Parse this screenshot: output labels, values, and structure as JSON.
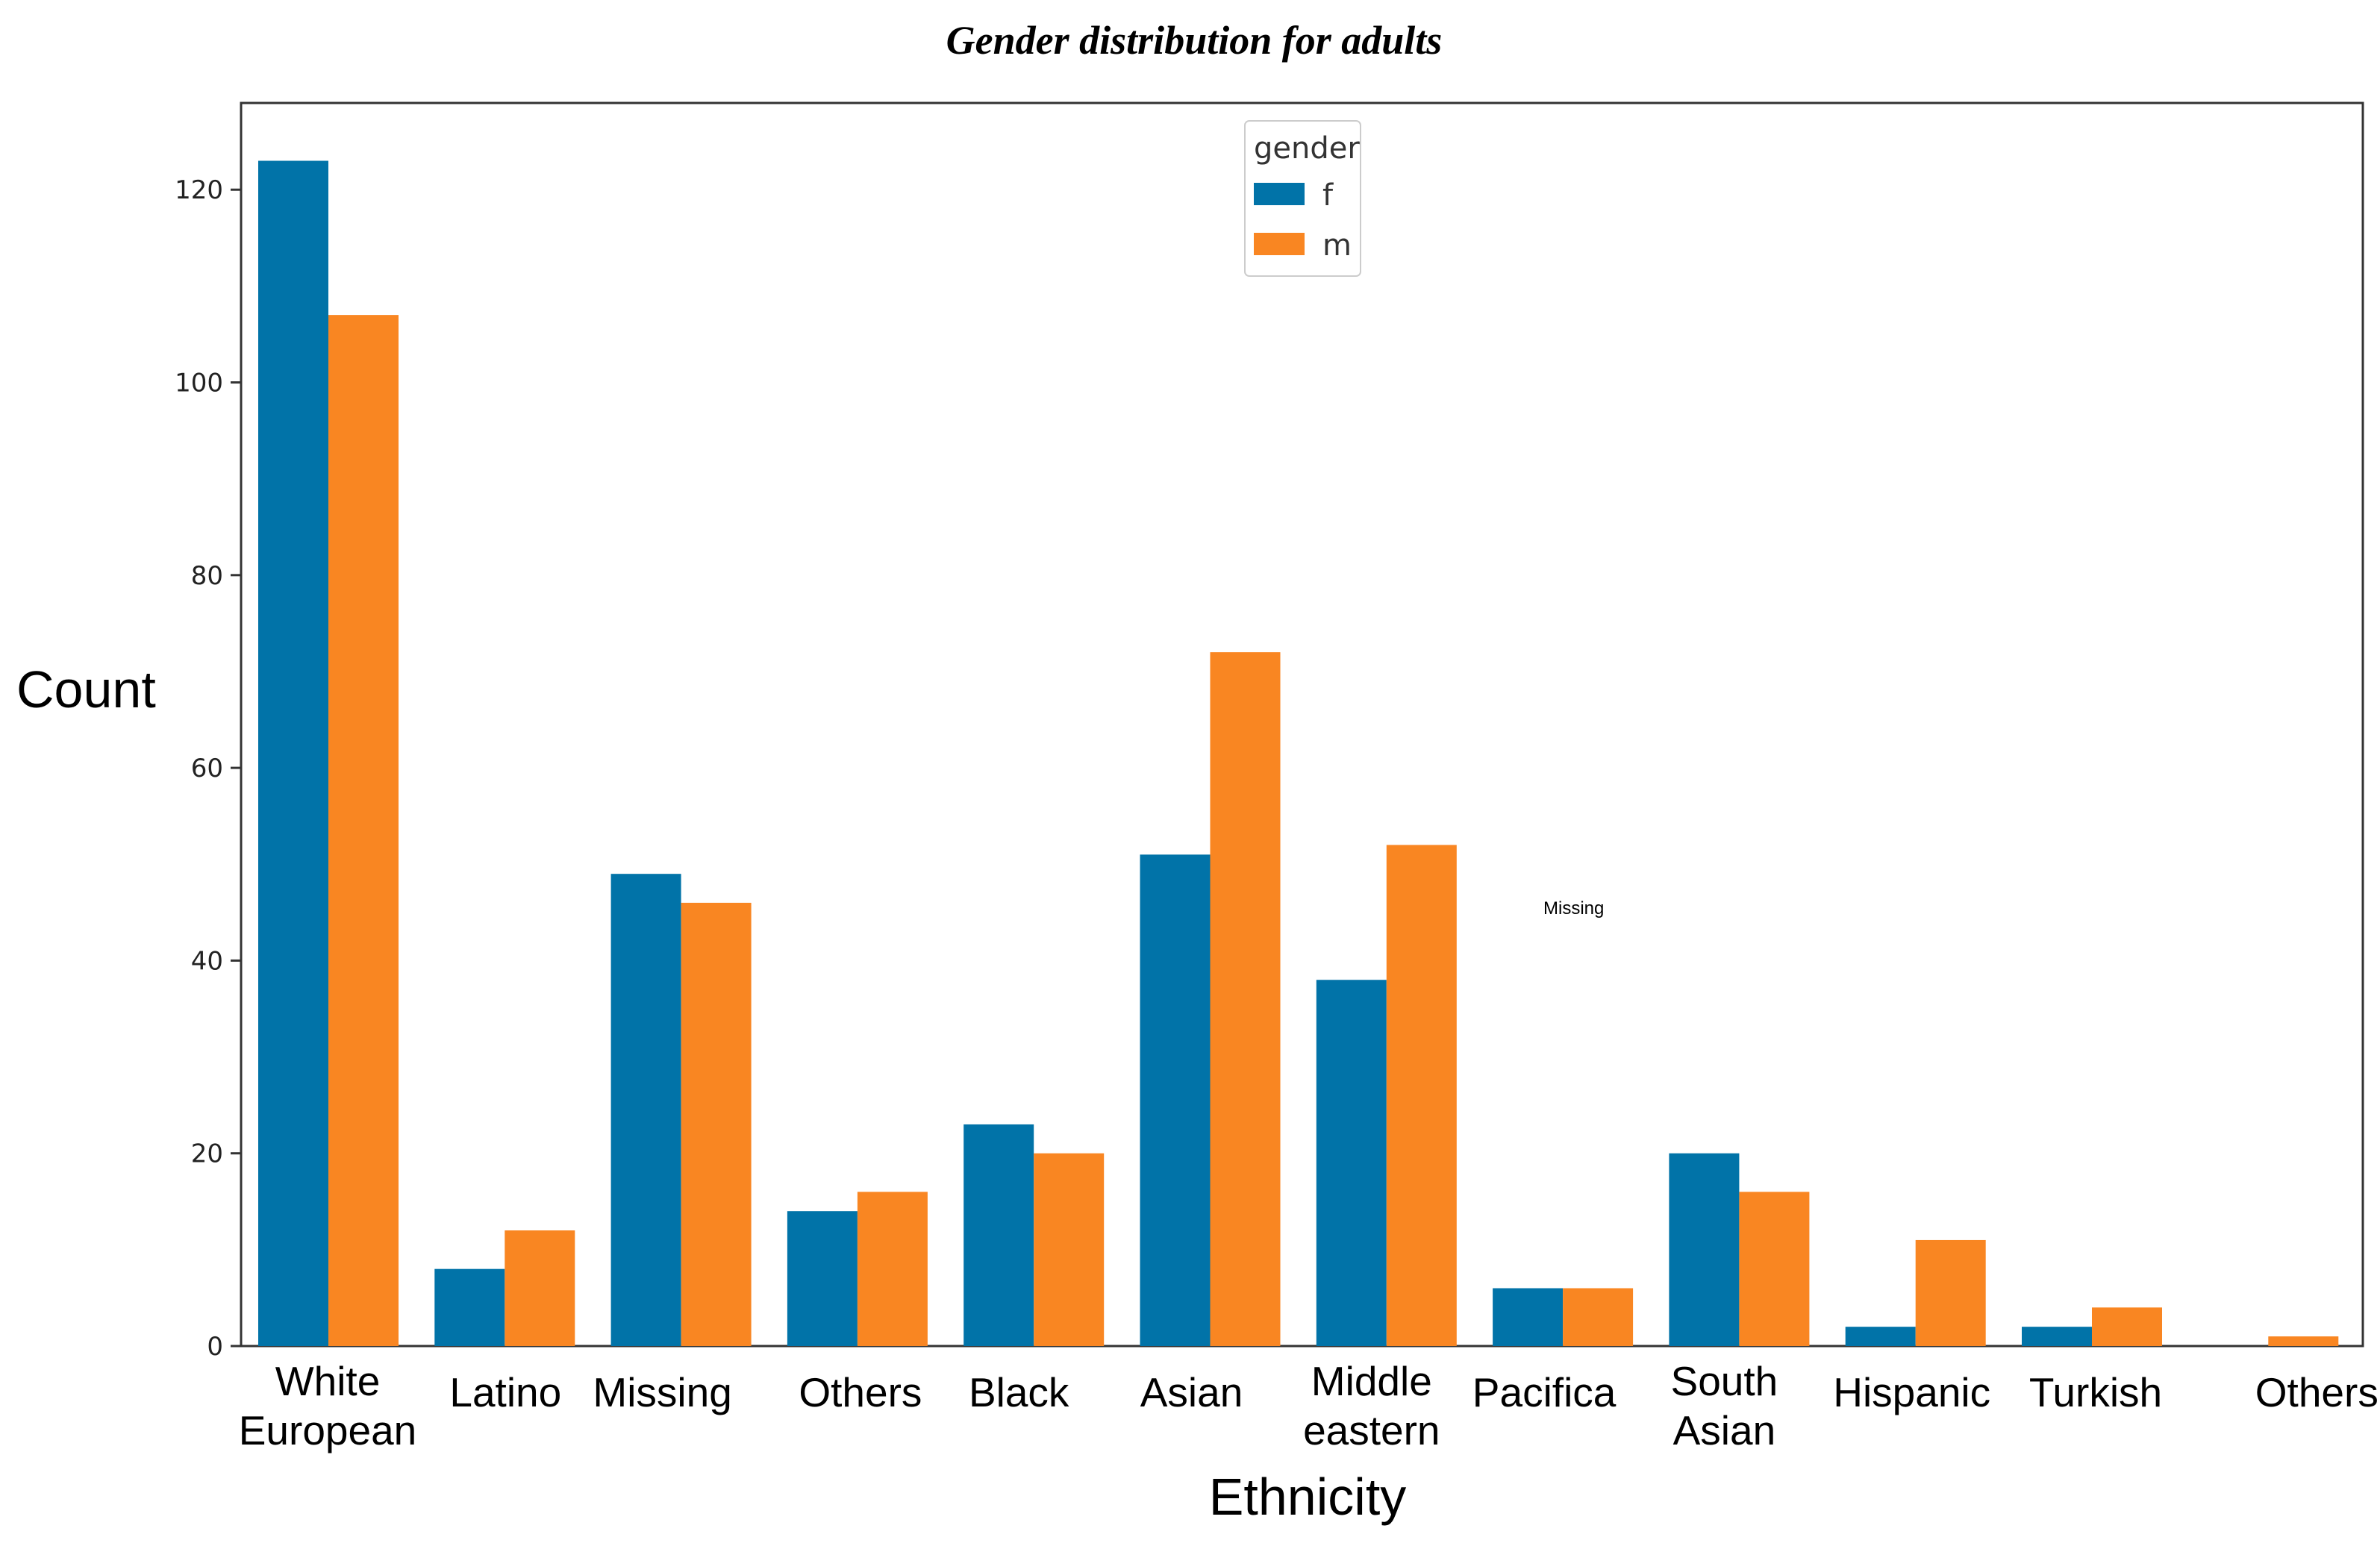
{
  "chart_data": {
    "type": "bar",
    "title": "Gender distribution for adults",
    "xlabel": "Ethnicity",
    "ylabel": "Count",
    "ylim": [
      0,
      129
    ],
    "yticks": [
      0,
      20,
      40,
      60,
      80,
      100,
      120
    ],
    "categories": [
      [
        "White",
        "European"
      ],
      [
        "Latino"
      ],
      [
        "Missing"
      ],
      [
        "Others"
      ],
      [
        "Black"
      ],
      [
        "Asian"
      ],
      [
        "Middle",
        "eastern"
      ],
      [
        "Pacifica"
      ],
      [
        "South",
        "Asian"
      ],
      [
        "Hispanic"
      ],
      [
        "Turkish"
      ],
      [
        "Others"
      ]
    ],
    "series": [
      {
        "name": "f",
        "color": "#0173a8",
        "values": [
          123,
          8,
          49,
          14,
          23,
          51,
          38,
          6,
          20,
          2,
          2,
          0
        ]
      },
      {
        "name": "m",
        "color": "#f98622",
        "values": [
          107,
          12,
          46,
          16,
          20,
          72,
          52,
          6,
          16,
          11,
          4,
          1
        ]
      }
    ],
    "legend": {
      "title": "gender",
      "position": "top-center"
    },
    "annotation": "Missing"
  }
}
